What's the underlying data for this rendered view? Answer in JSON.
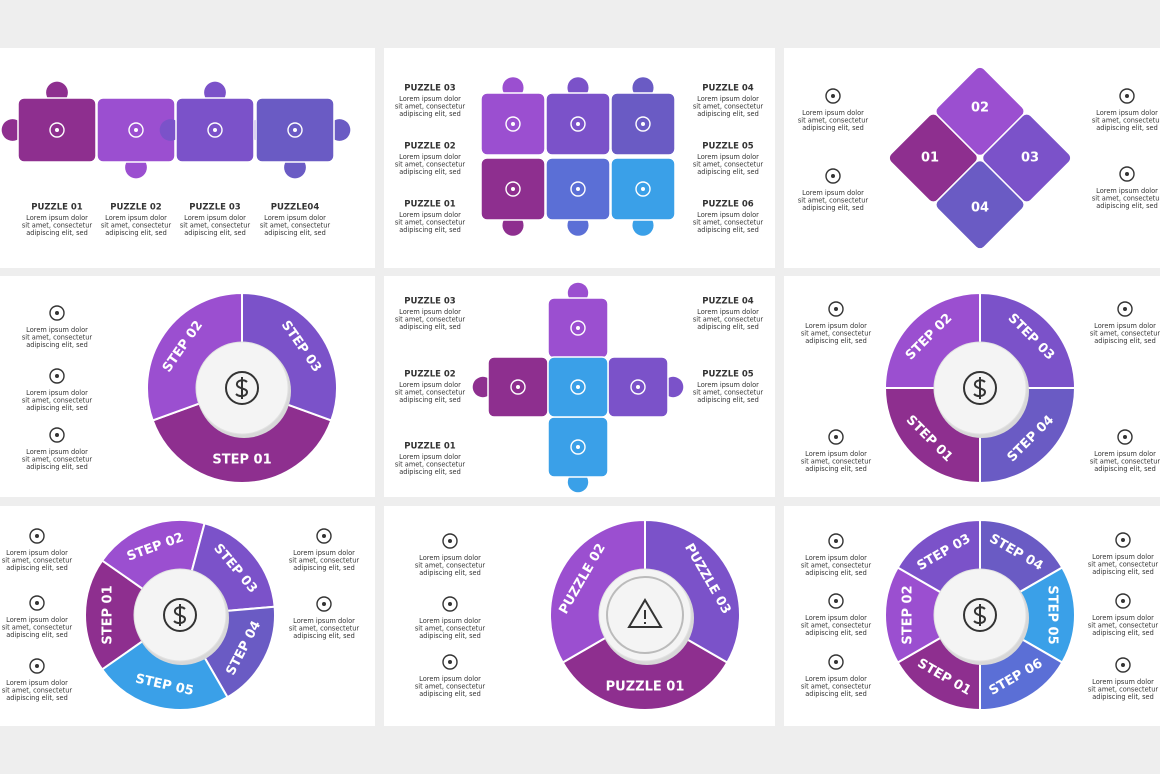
{
  "panels": [
    {
      "items": [
        {
          "title": "PUZZLE 01",
          "text": [
            "Lorem ipsum dolor",
            "sit amet, consectetur",
            "adipiscing elit, sed"
          ]
        },
        {
          "title": "PUZZLE 02",
          "text": [
            "Lorem ipsum dolor",
            "sit amet, consectetur",
            "adipiscing elit, sed"
          ]
        },
        {
          "title": "PUZZLE 03",
          "text": [
            "Lorem ipsum dolor",
            "sit amet, consectetur",
            "adipiscing elit, sed"
          ]
        },
        {
          "title": "PUZZLE04",
          "text": [
            "Lorem ipsum dolor",
            "sit amet, consectetur",
            "adipiscing elit, sed"
          ]
        }
      ]
    },
    {
      "items": [
        {
          "title": "PUZZLE 03",
          "text": [
            "Lorem ipsum dolor",
            "sit amet, consectetur",
            "adipiscing elit, sed"
          ]
        },
        {
          "title": "PUZZLE 02",
          "text": [
            "Lorem ipsum dolor",
            "sit amet, consectetur",
            "adipiscing elit, sed"
          ]
        },
        {
          "title": "PUZZLE 01",
          "text": [
            "Lorem ipsum dolor",
            "sit amet, consectetur",
            "adipiscing elit, sed"
          ]
        },
        {
          "title": "PUZZLE 04",
          "text": [
            "Lorem ipsum dolor",
            "sit amet, consectetur",
            "adipiscing elit, sed"
          ]
        },
        {
          "title": "PUZZLE 05",
          "text": [
            "Lorem ipsum dolor",
            "sit amet, consectetur",
            "adipiscing elit, sed"
          ]
        },
        {
          "title": "PUZZLE 06",
          "text": [
            "Lorem ipsum dolor",
            "sit amet, consectetur",
            "adipiscing elit, sed"
          ]
        }
      ]
    },
    {
      "labels": [
        "01",
        "02",
        "03",
        "04"
      ],
      "items": [
        {
          "text": [
            "Lorem ipsum dolor",
            "sit amet, consectetur",
            "adipiscing elit, sed"
          ]
        },
        {
          "text": [
            "Lorem ipsum dolor",
            "sit amet, consectetur",
            "adipiscing elit, sed"
          ]
        },
        {
          "text": [
            "Lorem ipsum dolor",
            "sit amet, consectetur",
            "adipiscing elit, sed"
          ]
        },
        {
          "text": [
            "Lorem ipsum dolor",
            "sit amet, consectetur",
            "adipiscing elit, sed"
          ]
        }
      ]
    },
    {
      "labels": [
        "STEP 01",
        "STEP 02",
        "STEP 03"
      ],
      "items": [
        {
          "text": [
            "Lorem ipsum dolor",
            "sit amet, consectetur",
            "adipiscing elit, sed"
          ]
        },
        {
          "text": [
            "Lorem ipsum dolor",
            "sit amet, consectetur",
            "adipiscing elit, sed"
          ]
        },
        {
          "text": [
            "Lorem ipsum dolor",
            "sit amet, consectetur",
            "adipiscing elit, sed"
          ]
        }
      ]
    },
    {
      "items": [
        {
          "title": "PUZZLE 03",
          "text": [
            "Lorem ipsum dolor",
            "sit amet, consectetur",
            "adipiscing elit, sed"
          ]
        },
        {
          "title": "PUZZLE 02",
          "text": [
            "Lorem ipsum dolor",
            "sit amet, consectetur",
            "adipiscing elit, sed"
          ]
        },
        {
          "title": "PUZZLE 01",
          "text": [
            "Lorem ipsum dolor",
            "sit amet, consectetur",
            "adipiscing elit, sed"
          ]
        },
        {
          "title": "PUZZLE 04",
          "text": [
            "Lorem ipsum dolor",
            "sit amet, consectetur",
            "adipiscing elit, sed"
          ]
        },
        {
          "title": "PUZZLE 05",
          "text": [
            "Lorem ipsum dolor",
            "sit amet, consectetur",
            "adipiscing elit, sed"
          ]
        }
      ]
    },
    {
      "labels": [
        "STEP 01",
        "STEP 02",
        "STEP 03",
        "STEP 04"
      ],
      "items": [
        {
          "text": [
            "Lorem ipsum dolor",
            "sit amet, consectetur",
            "adipiscing elit, sed"
          ]
        },
        {
          "text": [
            "Lorem ipsum dolor",
            "sit amet, consectetur",
            "adipiscing elit, sed"
          ]
        },
        {
          "text": [
            "Lorem ipsum dolor",
            "sit amet, consectetur",
            "adipiscing elit, sed"
          ]
        },
        {
          "text": [
            "Lorem ipsum dolor",
            "sit amet, consectetur",
            "adipiscing elit, sed"
          ]
        }
      ]
    },
    {
      "labels": [
        "STEP 01",
        "STEP 02",
        "STEP 03",
        "STEP 04",
        "STEP 05"
      ],
      "items": [
        {
          "text": [
            "Lorem ipsum dolor",
            "sit amet, consectetur",
            "adipiscing elit, sed"
          ]
        },
        {
          "text": [
            "Lorem ipsum dolor",
            "sit amet, consectetur",
            "adipiscing elit, sed"
          ]
        },
        {
          "text": [
            "Lorem ipsum dolor",
            "sit amet, consectetur",
            "adipiscing elit, sed"
          ]
        },
        {
          "text": [
            "Lorem ipsum dolor",
            "sit amet, consectetur",
            "adipiscing elit, sed"
          ]
        },
        {
          "text": [
            "Lorem ipsum dolor",
            "sit amet, consectetur",
            "adipiscing elit, sed"
          ]
        }
      ]
    },
    {
      "labels": [
        "PUZZLE 01",
        "PUZZLE 02",
        "PUZZLE 03"
      ],
      "items": [
        {
          "text": [
            "Lorem ipsum dolor",
            "sit amet, consectetur",
            "adipiscing elit, sed"
          ]
        },
        {
          "text": [
            "Lorem ipsum dolor",
            "sit amet, consectetur",
            "adipiscing elit, sed"
          ]
        },
        {
          "text": [
            "Lorem ipsum dolor",
            "sit amet, consectetur",
            "adipiscing elit, sed"
          ]
        }
      ]
    },
    {
      "labels": [
        "STEP 01",
        "STEP 02",
        "STEP 03",
        "STEP 04",
        "STEP 05",
        "STEP 06"
      ],
      "items": [
        {
          "text": [
            "Lorem ipsum dolor",
            "sit amet, consectetur",
            "adipiscing elit, sed"
          ]
        },
        {
          "text": [
            "Lorem ipsum dolor",
            "sit amet, consectetur",
            "adipiscing elit, sed"
          ]
        },
        {
          "text": [
            "Lorem ipsum dolor",
            "sit amet, consectetur",
            "adipiscing elit, sed"
          ]
        },
        {
          "text": [
            "Lorem ipsum dolor",
            "sit amet, consectetur",
            "adipiscing elit, sed"
          ]
        },
        {
          "text": [
            "Lorem ipsum dolor",
            "sit amet, consectetur",
            "adipiscing elit, sed"
          ]
        },
        {
          "text": [
            "Lorem ipsum dolor",
            "sit amet, consectetur",
            "adipiscing elit, sed"
          ]
        }
      ]
    }
  ]
}
